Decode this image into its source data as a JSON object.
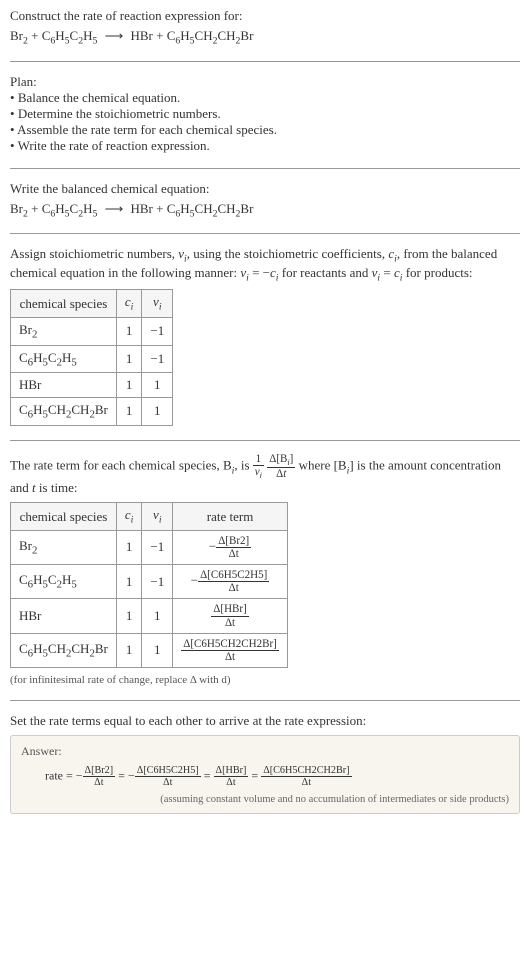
{
  "header": {
    "construct_label": "Construct the rate of reaction expression for:",
    "equation_lhs1": "Br",
    "equation_lhs1_sub": "2",
    "plus": " + ",
    "equation_lhs2a": "C",
    "equation_lhs2a_sub": "6",
    "equation_lhs2b": "H",
    "equation_lhs2b_sub": "5",
    "equation_lhs2c": "C",
    "equation_lhs2c_sub": "2",
    "equation_lhs2d": "H",
    "equation_lhs2d_sub": "5",
    "arrow": "⟶",
    "equation_rhs1": "HBr",
    "equation_rhs2a": "C",
    "equation_rhs2a_sub": "6",
    "equation_rhs2b": "H",
    "equation_rhs2b_sub": "5",
    "equation_rhs2c": "CH",
    "equation_rhs2c_sub": "2",
    "equation_rhs2d": "CH",
    "equation_rhs2d_sub": "2",
    "equation_rhs2e": "Br"
  },
  "plan": {
    "title": "Plan:",
    "items": [
      "Balance the chemical equation.",
      "Determine the stoichiometric numbers.",
      "Assemble the rate term for each chemical species.",
      "Write the rate of reaction expression."
    ]
  },
  "balanced": {
    "label": "Write the balanced chemical equation:"
  },
  "stoich": {
    "intro_a": "Assign stoichiometric numbers, ",
    "nu": "ν",
    "sub_i": "i",
    "intro_b": ", using the stoichiometric coefficients, ",
    "c": "c",
    "intro_c": ", from the balanced chemical equation in the following manner: ",
    "eq1": " = −",
    "intro_d": " for reactants and ",
    "eq2": " = ",
    "intro_e": " for products:",
    "headers": {
      "species": "chemical species",
      "ci": "cᵢ",
      "nui": "νᵢ"
    },
    "rows": [
      {
        "species_html": "Br<sub>2</sub>",
        "ci": "1",
        "nui": "−1"
      },
      {
        "species_html": "C<sub>6</sub>H<sub>5</sub>C<sub>2</sub>H<sub>5</sub>",
        "ci": "1",
        "nui": "−1"
      },
      {
        "species_html": "HBr",
        "ci": "1",
        "nui": "1"
      },
      {
        "species_html": "C<sub>6</sub>H<sub>5</sub>CH<sub>2</sub>CH<sub>2</sub>Br",
        "ci": "1",
        "nui": "1"
      }
    ]
  },
  "rateterm": {
    "intro_a": "The rate term for each chemical species, B",
    "intro_b": ", is ",
    "frac1_num": "1",
    "intro_c": " where [B",
    "intro_d": "] is the amount concentration and ",
    "t": "t",
    "intro_e": " is time:",
    "delta": "Δ",
    "headers": {
      "species": "chemical species",
      "ci": "cᵢ",
      "nui": "νᵢ",
      "rate": "rate term"
    },
    "rows": [
      {
        "species_html": "Br<sub>2</sub>",
        "ci": "1",
        "nui": "−1",
        "rate_num": "Δ[Br2]",
        "rate_den": "Δt",
        "neg": true
      },
      {
        "species_html": "C<sub>6</sub>H<sub>5</sub>C<sub>2</sub>H<sub>5</sub>",
        "ci": "1",
        "nui": "−1",
        "rate_num": "Δ[C6H5C2H5]",
        "rate_den": "Δt",
        "neg": true
      },
      {
        "species_html": "HBr",
        "ci": "1",
        "nui": "1",
        "rate_num": "Δ[HBr]",
        "rate_den": "Δt",
        "neg": false
      },
      {
        "species_html": "C<sub>6</sub>H<sub>5</sub>CH<sub>2</sub>CH<sub>2</sub>Br",
        "ci": "1",
        "nui": "1",
        "rate_num": "Δ[C6H5CH2CH2Br]",
        "rate_den": "Δt",
        "neg": false
      }
    ],
    "footnote": "(for infinitesimal rate of change, replace Δ with d)"
  },
  "final": {
    "label": "Set the rate terms equal to each other to arrive at the rate expression:",
    "answer_label": "Answer:",
    "rate_prefix": "rate = ",
    "eq": " = ",
    "neg": "−",
    "terms": [
      {
        "num": "Δ[Br2]",
        "den": "Δt",
        "neg": true
      },
      {
        "num": "Δ[C6H5C2H5]",
        "den": "Δt",
        "neg": true
      },
      {
        "num": "Δ[HBr]",
        "den": "Δt",
        "neg": false
      },
      {
        "num": "Δ[C6H5CH2CH2Br]",
        "den": "Δt",
        "neg": false
      }
    ],
    "assumption": "(assuming constant volume and no accumulation of intermediates or side products)"
  },
  "colors": {
    "text": "#333333",
    "border": "#999999",
    "answer_bg": "#f7f5ee"
  }
}
